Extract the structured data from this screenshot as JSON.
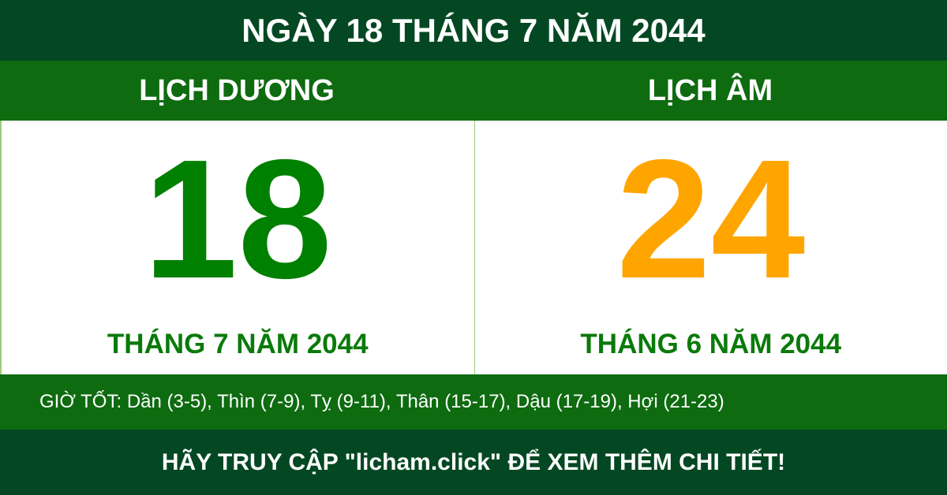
{
  "title": "NGÀY 18 THÁNG 7 NĂM 2044",
  "solar": {
    "label": "LỊCH DƯƠNG",
    "day": "18",
    "month_year": "THÁNG 7 NĂM 2044"
  },
  "lunar": {
    "label": "LỊCH ÂM",
    "day": "24",
    "month_year": "THÁNG 6 NĂM 2044"
  },
  "good_hours": "GIỜ TỐT: Dần (3-5), Thìn (7-9), Tỵ (9-11), Thân (15-17), Dậu (17-19), Hợi (21-23)",
  "footer": "HÃY TRUY CẬP \"licham.click\" ĐỂ XEM THÊM CHI TIẾT!",
  "colors": {
    "dark_green": "#034822",
    "green": "#0e6b10",
    "solar_day": "#008000",
    "lunar_day": "#ffa500"
  }
}
